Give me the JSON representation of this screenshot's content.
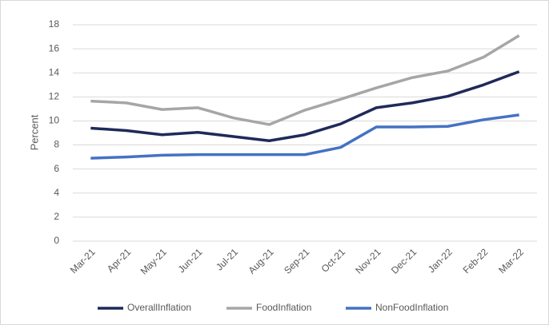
{
  "chart_data": {
    "type": "line",
    "y_label": "Percent",
    "categories": [
      "Mar-21",
      "Apr-21",
      "May-21",
      "Jun-21",
      "Jul-21",
      "Aug-21",
      "Sep-21",
      "Oct-21",
      "Nov-21",
      "Dec-21",
      "Jan-22",
      "Feb-22",
      "Mar-22"
    ],
    "series": [
      {
        "name": "OverallInflation",
        "color": "#1f2a5a",
        "values": [
          9.4,
          9.2,
          8.85,
          9.05,
          8.7,
          8.35,
          8.85,
          9.75,
          11.1,
          11.5,
          12.05,
          13.0,
          14.1
        ]
      },
      {
        "name": "FoodInflation",
        "color": "#a6a6a6",
        "values": [
          11.65,
          11.5,
          10.95,
          11.1,
          10.25,
          9.7,
          10.9,
          11.8,
          12.75,
          13.6,
          14.15,
          15.3,
          17.1
        ]
      },
      {
        "name": "NonFoodInflation",
        "color": "#4472c4",
        "values": [
          6.9,
          7.0,
          7.15,
          7.2,
          7.2,
          7.2,
          7.2,
          7.8,
          9.5,
          9.5,
          9.55,
          10.1,
          10.5
        ]
      }
    ],
    "ylim": [
      0,
      18
    ],
    "yticks": [
      0,
      2,
      4,
      6,
      8,
      10,
      12,
      14,
      16,
      18
    ],
    "grid": true,
    "legend": "bottom"
  }
}
